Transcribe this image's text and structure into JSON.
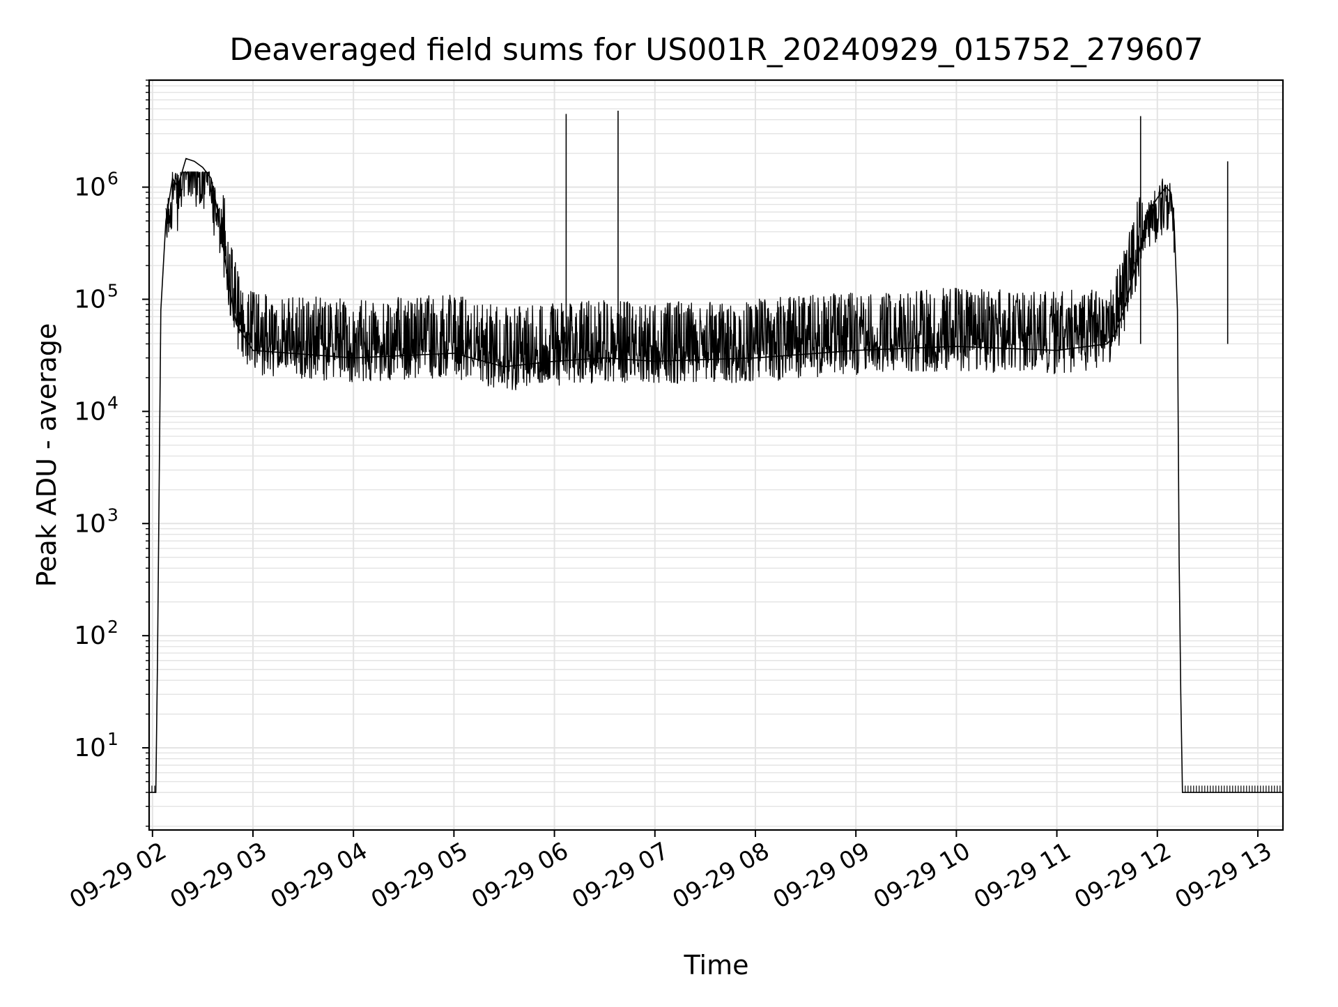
{
  "chart_data": {
    "type": "line",
    "title": "Deaveraged field sums for US001R_20240929_015752_279607",
    "xlabel": "Time",
    "ylabel": "Peak ADU - average",
    "y_scale": "log",
    "ylim": [
      1.85,
      9000000
    ],
    "xlim": [
      "2024-09-29T01:58",
      "2024-09-29T13:15"
    ],
    "grid": true,
    "series_color": "#000000",
    "x_tick_labels": [
      "09-29 02",
      "09-29 03",
      "09-29 04",
      "09-29 05",
      "09-29 06",
      "09-29 07",
      "09-29 08",
      "09-29 09",
      "09-29 10",
      "09-29 11",
      "09-29 12",
      "09-29 13"
    ],
    "x_ticks": [
      "2024-09-29T02:00",
      "2024-09-29T03:00",
      "2024-09-29T04:00",
      "2024-09-29T05:00",
      "2024-09-29T06:00",
      "2024-09-29T07:00",
      "2024-09-29T08:00",
      "2024-09-29T09:00",
      "2024-09-29T10:00",
      "2024-09-29T11:00",
      "2024-09-29T12:00",
      "2024-09-29T13:00"
    ],
    "y_ticks": [
      {
        "value": 10,
        "base": "10",
        "exp": "1"
      },
      {
        "value": 100,
        "base": "10",
        "exp": "2"
      },
      {
        "value": 1000,
        "base": "10",
        "exp": "3"
      },
      {
        "value": 10000,
        "base": "10",
        "exp": "4"
      },
      {
        "value": 100000,
        "base": "10",
        "exp": "5"
      },
      {
        "value": 1000000,
        "base": "10",
        "exp": "6"
      }
    ],
    "series": [
      {
        "points": [
          [
            "2024-09-29T01:58",
            4
          ],
          [
            "2024-09-29T02:02",
            4
          ],
          [
            "2024-09-29T02:03",
            60
          ],
          [
            "2024-09-29T02:05",
            80000
          ],
          [
            "2024-09-29T02:08",
            500000
          ],
          [
            "2024-09-29T02:12",
            1200000
          ],
          [
            "2024-09-29T02:15",
            1000000
          ],
          [
            "2024-09-29T02:20",
            1800000
          ],
          [
            "2024-09-29T02:25",
            1700000
          ],
          [
            "2024-09-29T02:30",
            1500000
          ],
          [
            "2024-09-29T02:35",
            1200000
          ],
          [
            "2024-09-29T02:40",
            500000
          ],
          [
            "2024-09-29T02:45",
            150000
          ],
          [
            "2024-09-29T02:50",
            60000
          ],
          [
            "2024-09-29T03:00",
            35000
          ],
          [
            "2024-09-29T04:00",
            30000
          ],
          [
            "2024-09-29T05:00",
            33000
          ],
          [
            "2024-09-29T05:30",
            25000
          ],
          [
            "2024-09-29T06:00",
            28000
          ],
          [
            "2024-09-29T06:30",
            30000
          ],
          [
            "2024-09-29T07:00",
            28000
          ],
          [
            "2024-09-29T08:00",
            30000
          ],
          [
            "2024-09-29T09:00",
            35000
          ],
          [
            "2024-09-29T10:00",
            38000
          ],
          [
            "2024-09-29T11:00",
            35000
          ],
          [
            "2024-09-29T11:30",
            40000
          ],
          [
            "2024-09-29T11:35",
            50000
          ],
          [
            "2024-09-29T11:40",
            80000
          ],
          [
            "2024-09-29T11:45",
            150000
          ],
          [
            "2024-09-29T11:50",
            300000
          ],
          [
            "2024-09-29T11:55",
            600000
          ],
          [
            "2024-09-29T12:00",
            800000
          ],
          [
            "2024-09-29T12:05",
            1000000
          ],
          [
            "2024-09-29T12:08",
            900000
          ],
          [
            "2024-09-29T12:10",
            500000
          ],
          [
            "2024-09-29T12:12",
            80000
          ],
          [
            "2024-09-29T12:13",
            500
          ],
          [
            "2024-09-29T12:14",
            30
          ],
          [
            "2024-09-29T12:15",
            4
          ],
          [
            "2024-09-29T13:15",
            4
          ]
        ],
        "spikes": [
          [
            "2024-09-29T06:07",
            4500000
          ],
          [
            "2024-09-29T06:38",
            4800000
          ],
          [
            "2024-09-29T11:50",
            4300000
          ],
          [
            "2024-09-29T12:42",
            1700000
          ]
        ]
      }
    ]
  }
}
